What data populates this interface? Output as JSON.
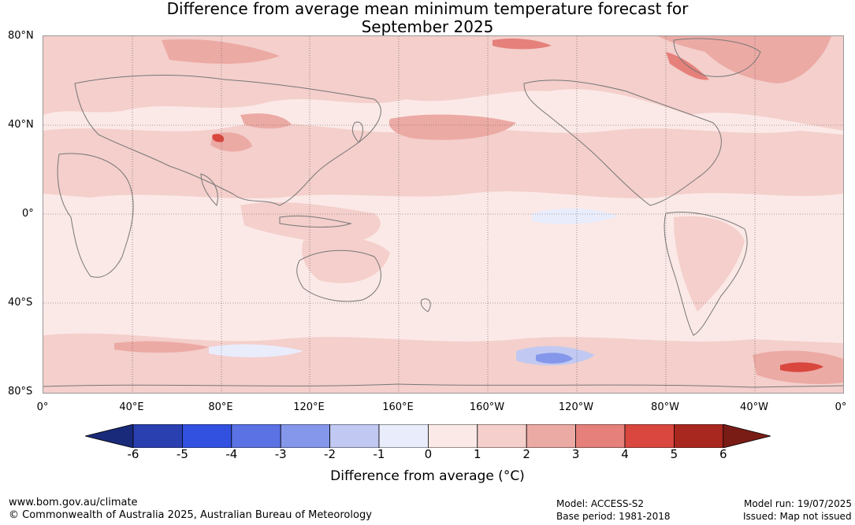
{
  "title_line1": "Difference from average mean minimum temperature forecast for",
  "title_line2": "September 2025",
  "latitude_labels": [
    "80°N",
    "40°N",
    "0°",
    "40°S",
    "80°S"
  ],
  "longitude_labels": [
    "0°",
    "40°E",
    "80°E",
    "120°E",
    "160°E",
    "160°W",
    "120°W",
    "80°W",
    "40°W",
    "0°"
  ],
  "legend": {
    "title": "Difference from average (",
    "title_unit": "°C)",
    "ticks": [
      "-6",
      "-5",
      "-4",
      "-3",
      "-2",
      "-1",
      "0",
      "1",
      "2",
      "3",
      "4",
      "5",
      "6"
    ],
    "colors": [
      "#1a2a7a",
      "#2a3fb0",
      "#3351e0",
      "#5a72e4",
      "#8597ea",
      "#c1c9f2",
      "#e9ecfb",
      "#fbe9e7",
      "#f4cfcb",
      "#ecaaa5",
      "#e5807a",
      "#d9473e",
      "#a8271f",
      "#7a1c16"
    ]
  },
  "footer": {
    "website": "www.bom.gov.au/climate",
    "copyright": "© Commonwealth of Australia 2025, Australian Bureau of Meteorology",
    "model": "Model: ACCESS-S2",
    "base_period": "Base period: 1981-2018",
    "model_run": "Model run: 19/07/2025",
    "issued": "Issued: Map not issued"
  }
}
